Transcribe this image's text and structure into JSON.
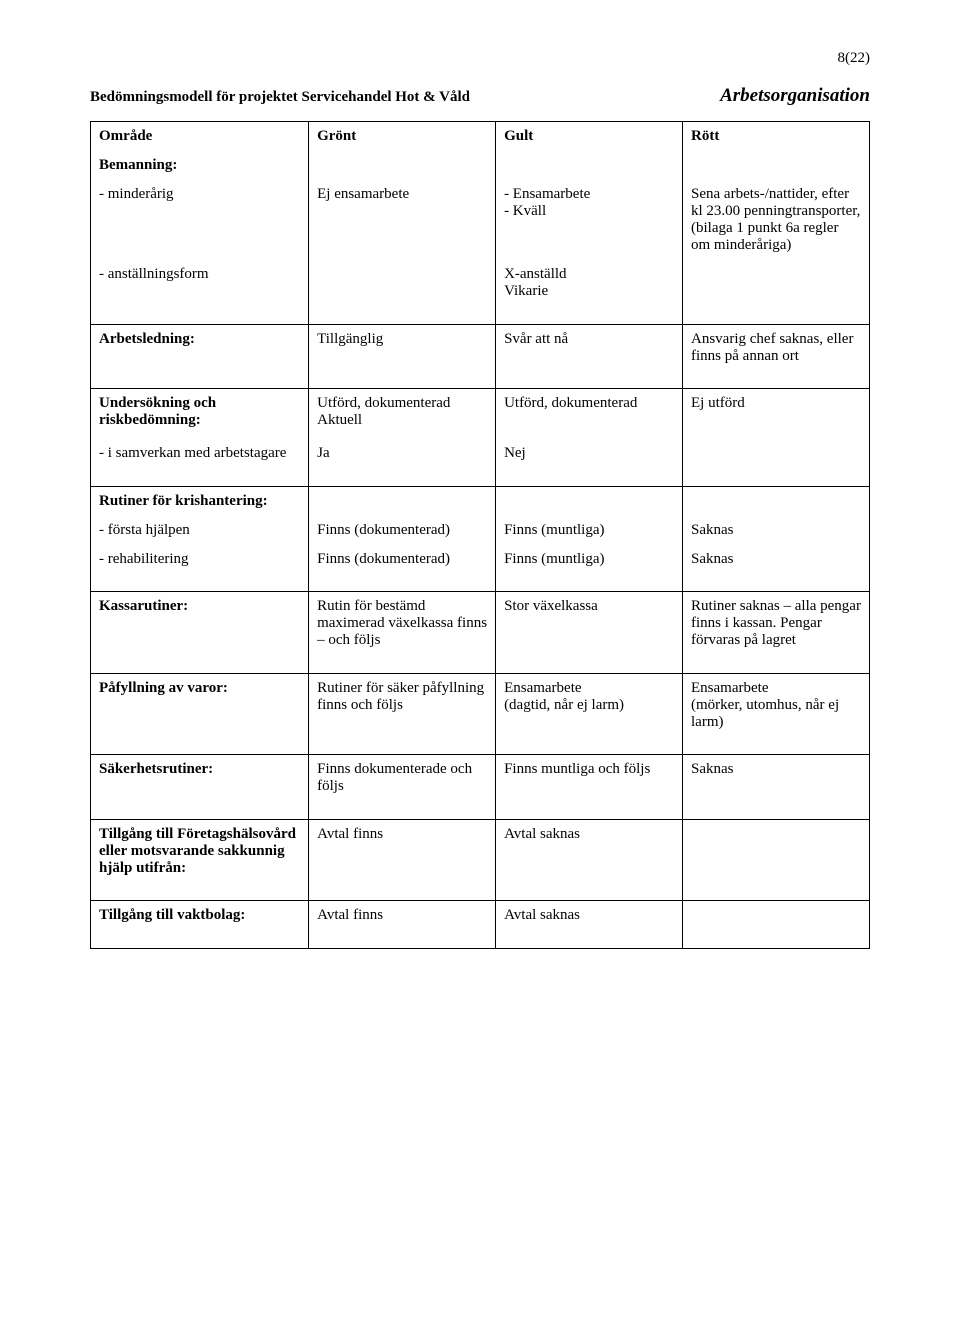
{
  "page_number": "8(22)",
  "doc_title": "Bedömningsmodell för projektet Servicehandel Hot & Våld",
  "section_title": "Arbetsorganisation",
  "header": {
    "c0": "Område",
    "c1": "Grönt",
    "c2": "Gult",
    "c3": "Rött"
  },
  "bemanning": {
    "label": "Bemanning:",
    "r1": {
      "c0": "- minderårig",
      "c1": "Ej ensamarbete",
      "c2": "- Ensamarbete\n- Kväll",
      "c3": "Sena arbets-/nattider, efter kl 23.00 penningtransporter, (bilaga 1 punkt 6a regler om minderåriga)"
    },
    "r2": {
      "c0": "- anställningsform",
      "c1": "",
      "c2": "X-anställd\nVikarie",
      "c3": ""
    }
  },
  "arbetsledning": {
    "label": "Arbetsledning:",
    "c1": "Tillgänglig",
    "c2": "Svår att nå",
    "c3": "Ansvarig chef saknas, eller finns på annan ort"
  },
  "undersokning": {
    "label": "Undersökning och riskbedömning:",
    "c1": "Utförd, dokumenterad Aktuell",
    "c2": "Utförd, dokumenterad",
    "c3": "Ej utförd",
    "sub": {
      "c0": "- i samverkan med arbetstagare",
      "c1": "Ja",
      "c2": "Nej",
      "c3": ""
    }
  },
  "rutiner_kris": {
    "label": "Rutiner för krishantering:",
    "r1": {
      "c0": "- första hjälpen",
      "c1": "Finns (dokumenterad)",
      "c2": "Finns (muntliga)",
      "c3": "Saknas"
    },
    "r2": {
      "c0": "- rehabilitering",
      "c1": "Finns (dokumenterad)",
      "c2": "Finns (muntliga)",
      "c3": "Saknas"
    }
  },
  "kassarutiner": {
    "label": "Kassarutiner:",
    "c1": "Rutin för bestämd maximerad växelkassa finns – och följs",
    "c2": "Stor växelkassa",
    "c3": "Rutiner saknas – alla pengar finns i kassan. Pengar förvaras på lagret"
  },
  "pafyllning": {
    "label": "Påfyllning av varor:",
    "c1": "Rutiner för säker påfyllning finns och följs",
    "c2": "Ensamarbete\n(dagtid, når ej larm)",
    "c3": "Ensamarbete\n(mörker, utomhus, når ej larm)"
  },
  "sakerhetsrutiner": {
    "label": "Säkerhetsrutiner:",
    "c1": "Finns dokumenterade och följs",
    "c2": "Finns muntliga och följs",
    "c3": "Saknas"
  },
  "foretagshalsovard": {
    "label": "Tillgång till Företagshälsovård eller motsvarande sakkunnig hjälp utifrån:",
    "c1": "Avtal finns",
    "c2": "Avtal saknas",
    "c3": ""
  },
  "vaktbolag": {
    "label": "Tillgång till vaktbolag:",
    "c1": "Avtal finns",
    "c2": "Avtal saknas",
    "c3": ""
  }
}
